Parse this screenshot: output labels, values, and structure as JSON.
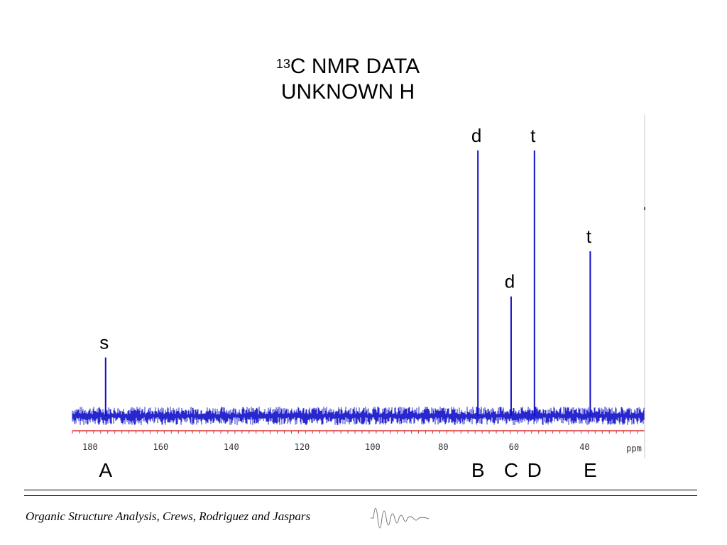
{
  "slide": {
    "title_superscript": "13",
    "title_line1": "C NMR DATA",
    "title_line2": "UNKNOWN H",
    "footer": "Organic Structure Analysis, Crews, Rodriguez and Jaspars"
  },
  "chart_data": {
    "type": "line",
    "title": "13C NMR DATA UNKNOWN H",
    "xlabel": "ppm",
    "xlim": [
      185,
      23
    ],
    "x_reversed": true,
    "x_ticks": [
      180,
      160,
      140,
      120,
      100,
      80,
      60,
      40
    ],
    "y_relative_range": [
      0,
      1
    ],
    "grid": false,
    "series_color": "#1010c8",
    "axis_color": "#e03030",
    "peaks": [
      {
        "ppm": 175.6,
        "height": 0.22,
        "multiplicity": "s",
        "label": "A"
      },
      {
        "ppm": 70.2,
        "height": 1.0,
        "multiplicity": "d",
        "label": "B"
      },
      {
        "ppm": 60.8,
        "height": 0.45,
        "multiplicity": "d",
        "label": "C"
      },
      {
        "ppm": 54.2,
        "height": 1.0,
        "multiplicity": "t",
        "label": "D"
      },
      {
        "ppm": 38.4,
        "height": 0.62,
        "multiplicity": "t",
        "label": "E"
      }
    ]
  }
}
